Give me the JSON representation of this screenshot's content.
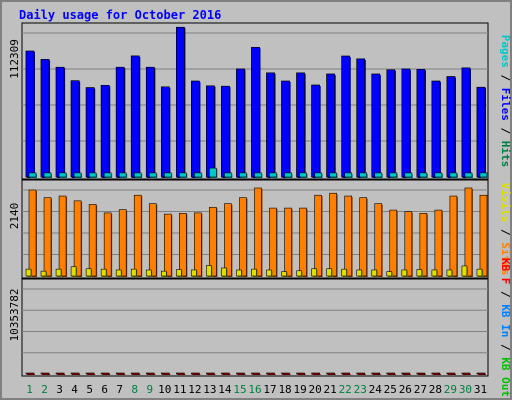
{
  "chart_data": {
    "type": "bar",
    "title": "Daily usage for October 2016",
    "categories": [
      "1",
      "2",
      "3",
      "4",
      "5",
      "6",
      "7",
      "8",
      "9",
      "10",
      "11",
      "12",
      "13",
      "14",
      "15",
      "16",
      "17",
      "18",
      "19",
      "20",
      "21",
      "22",
      "23",
      "24",
      "25",
      "26",
      "27",
      "28",
      "29",
      "30",
      "31"
    ],
    "weekend_days": [
      "1",
      "2",
      "8",
      "9",
      "15",
      "16",
      "22",
      "23",
      "29",
      "30"
    ],
    "panels": [
      {
        "id": "hits",
        "ymax": 112309,
        "ymax_label": "112309",
        "axis_label_parts": [
          {
            "text": "Pages",
            "color": "#00c8c8"
          },
          {
            "text": " / ",
            "color": "#000000"
          },
          {
            "text": "Files",
            "color": "#0000ff"
          },
          {
            "text": " / ",
            "color": "#000000"
          },
          {
            "text": "Hits",
            "color": "#008040"
          }
        ],
        "series": [
          {
            "name": "Hits",
            "color": "#008040",
            "values": [
              98200,
              91700,
              85600,
              75100,
              69700,
              71500,
              85600,
              94400,
              85600,
              70300,
              116800,
              74800,
              71100,
              70800,
              84300,
              101100,
              81200,
              74800,
              81200,
              71700,
              80300,
              94300,
              92100,
              80300,
              83600,
              84300,
              84000,
              74800,
              78300,
              85100,
              70000
            ]
          },
          {
            "name": "Files",
            "color": "#0000ff",
            "values": [
              98200,
              91700,
              85600,
              75100,
              69700,
              71500,
              85600,
              94400,
              85600,
              70300,
              116800,
              74800,
              71100,
              70800,
              84300,
              101100,
              81200,
              74800,
              81200,
              71700,
              80300,
              94300,
              92100,
              80300,
              83600,
              84300,
              84000,
              74800,
              78300,
              85100,
              70000
            ]
          },
          {
            "name": "Pages",
            "color": "#00c8c8",
            "values": [
              3200,
              3200,
              3200,
              3200,
              3200,
              3200,
              3200,
              3200,
              3200,
              3200,
              3200,
              3200,
              6900,
              3200,
              3200,
              3200,
              3200,
              3200,
              3200,
              3200,
              3200,
              3200,
              3200,
              3200,
              3200,
              3200,
              3200,
              3200,
              3200,
              3200,
              3200
            ]
          }
        ]
      },
      {
        "id": "visits",
        "ymax": 2140,
        "ymax_label": "2140",
        "axis_label_parts": [
          {
            "text": "Visits",
            "color": "#e0e000"
          },
          {
            "text": " / ",
            "color": "#000000"
          },
          {
            "text": "Sites",
            "color": "#ff8000"
          }
        ],
        "series": [
          {
            "name": "Sites",
            "color": "#ff8000",
            "values": [
              2140,
              1950,
              1990,
              1870,
              1780,
              1570,
              1650,
              2010,
              1800,
              1540,
              1560,
              1570,
              1710,
              1800,
              1950,
              2190,
              1690,
              1690,
              1690,
              2010,
              2060,
              1990,
              1950,
              1800,
              1640,
              1600,
              1560,
              1640,
              1990,
              2190,
              2010
            ]
          },
          {
            "name": "Visits",
            "color": "#e0e000",
            "values": [
              170,
              120,
              170,
              230,
              180,
              170,
              150,
              170,
              150,
              120,
              160,
              150,
              260,
              200,
              150,
              170,
              150,
              110,
              130,
              180,
              180,
              170,
              150,
              150,
              110,
              150,
              160,
              150,
              150,
              250,
              170
            ]
          }
        ]
      },
      {
        "id": "kbytes",
        "ymax": 10353782,
        "ymax_label": "10353782",
        "axis_label_parts": [
          {
            "text": "KB F",
            "color": "#ff0000"
          },
          {
            "text": " / ",
            "color": "#000000"
          },
          {
            "text": "KB In",
            "color": "#0080ff"
          },
          {
            "text": " / ",
            "color": "#000000"
          },
          {
            "text": "KB Out",
            "color": "#00c000"
          }
        ],
        "series": [
          {
            "name": "KB F",
            "color": "#ff0000",
            "values": [
              6200,
              5550,
              5250,
              4600,
              4600,
              3980,
              4640,
              5600,
              5250,
              4190,
              10500,
              4600,
              3980,
              3960,
              5460,
              5670,
              4340,
              4340,
              4340,
              3900,
              4340,
              5250,
              4970,
              4340,
              4620,
              4620,
              4620,
              3980,
              4620,
              4620,
              4100
            ]
          }
        ]
      }
    ]
  }
}
